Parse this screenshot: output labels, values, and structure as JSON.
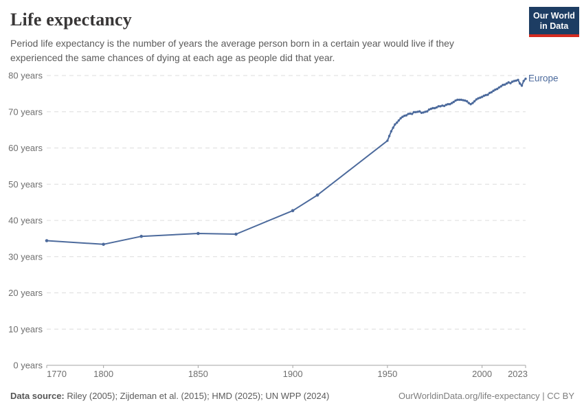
{
  "header": {
    "title": "Life expectancy",
    "subtitle": "Period life expectancy is the number of years the average person born in a certain year would live if they experienced the same chances of dying at each age as people did that year."
  },
  "logo": {
    "line1": "Our World",
    "line2": "in Data",
    "bg_color": "#1d3d63",
    "accent_color": "#d42b20"
  },
  "chart_data": {
    "type": "line",
    "title": "Life expectancy",
    "entity_label": "Europe",
    "line_color": "#4C6A9C",
    "grid_color": "#dcdcdc",
    "axis_color": "#a3a3a3",
    "axis_text_color": "#6e6e6e",
    "grid": "dashed-horizontal",
    "legend_position": "end-of-line",
    "xlabel": "",
    "ylabel": "",
    "xlim": [
      1770,
      2023
    ],
    "ylim": [
      0,
      80
    ],
    "y_ticks": [
      {
        "value": 0,
        "label": "0 years"
      },
      {
        "value": 10,
        "label": "10 years"
      },
      {
        "value": 20,
        "label": "20 years"
      },
      {
        "value": 30,
        "label": "30 years"
      },
      {
        "value": 40,
        "label": "40 years"
      },
      {
        "value": 50,
        "label": "50 years"
      },
      {
        "value": 60,
        "label": "60 years"
      },
      {
        "value": 70,
        "label": "70 years"
      },
      {
        "value": 80,
        "label": "80 years"
      }
    ],
    "x_ticks": [
      {
        "value": 1770,
        "label": "1770"
      },
      {
        "value": 1800,
        "label": "1800"
      },
      {
        "value": 1850,
        "label": "1850"
      },
      {
        "value": 1900,
        "label": "1900"
      },
      {
        "value": 1950,
        "label": "1950"
      },
      {
        "value": 2000,
        "label": "2000"
      },
      {
        "value": 2023,
        "label": "2023"
      }
    ],
    "series": [
      {
        "name": "Europe",
        "points": [
          [
            1770,
            34.4
          ],
          [
            1800,
            33.4
          ],
          [
            1820,
            35.6
          ],
          [
            1850,
            36.4
          ],
          [
            1870,
            36.2
          ],
          [
            1900,
            42.7
          ],
          [
            1913,
            47.0
          ],
          [
            1950,
            62.0
          ],
          [
            1951,
            63.3
          ],
          [
            1952,
            64.6
          ],
          [
            1953,
            65.6
          ],
          [
            1954,
            66.5
          ],
          [
            1955,
            67.0
          ],
          [
            1956,
            67.6
          ],
          [
            1957,
            68.2
          ],
          [
            1958,
            68.6
          ],
          [
            1959,
            68.9
          ],
          [
            1960,
            69.0
          ],
          [
            1961,
            69.4
          ],
          [
            1962,
            69.5
          ],
          [
            1963,
            69.4
          ],
          [
            1964,
            69.9
          ],
          [
            1965,
            69.9
          ],
          [
            1966,
            70.0
          ],
          [
            1967,
            70.1
          ],
          [
            1968,
            69.7
          ],
          [
            1969,
            69.8
          ],
          [
            1970,
            70.0
          ],
          [
            1971,
            70.1
          ],
          [
            1972,
            70.6
          ],
          [
            1973,
            70.8
          ],
          [
            1974,
            71.0
          ],
          [
            1975,
            71.0
          ],
          [
            1976,
            71.2
          ],
          [
            1977,
            71.5
          ],
          [
            1978,
            71.5
          ],
          [
            1979,
            71.7
          ],
          [
            1980,
            71.6
          ],
          [
            1981,
            71.9
          ],
          [
            1982,
            72.1
          ],
          [
            1983,
            72.1
          ],
          [
            1984,
            72.4
          ],
          [
            1985,
            72.7
          ],
          [
            1986,
            73.1
          ],
          [
            1987,
            73.3
          ],
          [
            1988,
            73.3
          ],
          [
            1989,
            73.3
          ],
          [
            1990,
            73.2
          ],
          [
            1991,
            73.1
          ],
          [
            1992,
            72.9
          ],
          [
            1993,
            72.4
          ],
          [
            1994,
            72.1
          ],
          [
            1995,
            72.4
          ],
          [
            1996,
            72.9
          ],
          [
            1997,
            73.4
          ],
          [
            1998,
            73.7
          ],
          [
            1999,
            73.9
          ],
          [
            2000,
            74.1
          ],
          [
            2001,
            74.4
          ],
          [
            2002,
            74.6
          ],
          [
            2003,
            74.7
          ],
          [
            2004,
            75.2
          ],
          [
            2005,
            75.4
          ],
          [
            2006,
            75.8
          ],
          [
            2007,
            76.1
          ],
          [
            2008,
            76.3
          ],
          [
            2009,
            76.7
          ],
          [
            2010,
            77.0
          ],
          [
            2011,
            77.4
          ],
          [
            2012,
            77.5
          ],
          [
            2013,
            77.8
          ],
          [
            2014,
            78.1
          ],
          [
            2015,
            77.9
          ],
          [
            2016,
            78.3
          ],
          [
            2017,
            78.5
          ],
          [
            2018,
            78.6
          ],
          [
            2019,
            78.8
          ],
          [
            2020,
            77.8
          ],
          [
            2021,
            77.2
          ],
          [
            2022,
            78.5
          ],
          [
            2023,
            79.1
          ]
        ]
      }
    ]
  },
  "footer": {
    "source_label": "Data source:",
    "source_text": " Riley (2005); Zijdeman et al. (2015); HMD (2025); UN WPP (2024)",
    "credit": "OurWorldinData.org/life-expectancy | CC BY"
  }
}
